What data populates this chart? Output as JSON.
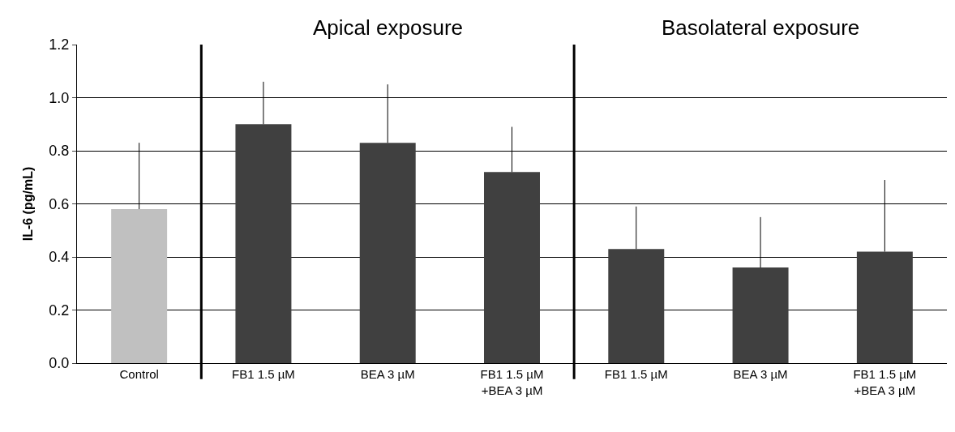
{
  "chart_data": {
    "type": "bar",
    "ylabel": "IL-6 (pg/mL)",
    "categories": [
      "Control",
      "FB1 1.5 µM",
      "BEA 3 µM",
      "FB1 1.5 µM\n+BEA 3 µM",
      "FB1 1.5 µM",
      "BEA 3 µM",
      "FB1 1.5 µM\n+BEA 3 µM"
    ],
    "values": [
      0.58,
      0.9,
      0.83,
      0.72,
      0.43,
      0.36,
      0.42
    ],
    "colors": [
      "#c0c0c0",
      "#404040",
      "#404040",
      "#404040",
      "#404040",
      "#404040",
      "#404040"
    ],
    "errors": [
      [
        0.58,
        0.83
      ],
      [
        0.9,
        1.06
      ],
      [
        0.83,
        1.05
      ],
      [
        0.72,
        0.89
      ],
      [
        0.43,
        0.59
      ],
      [
        0.36,
        0.55
      ],
      [
        0.42,
        0.69
      ]
    ],
    "ylim": [
      0,
      1.2
    ],
    "yticks": [
      {
        "value": 0,
        "label": "0.0"
      },
      {
        "value": 0.2,
        "label": "0.2"
      },
      {
        "value": 0.4,
        "label": "0.4"
      },
      {
        "value": 0.6,
        "label": "0.6"
      },
      {
        "value": 0.8,
        "label": "0.8"
      },
      {
        "value": 1.0,
        "label": "1.0"
      },
      {
        "value": 1.2,
        "label": "1.2"
      }
    ],
    "grid": "y",
    "annotations": [
      "Apical exposure",
      "Basolateral exposure"
    ]
  }
}
